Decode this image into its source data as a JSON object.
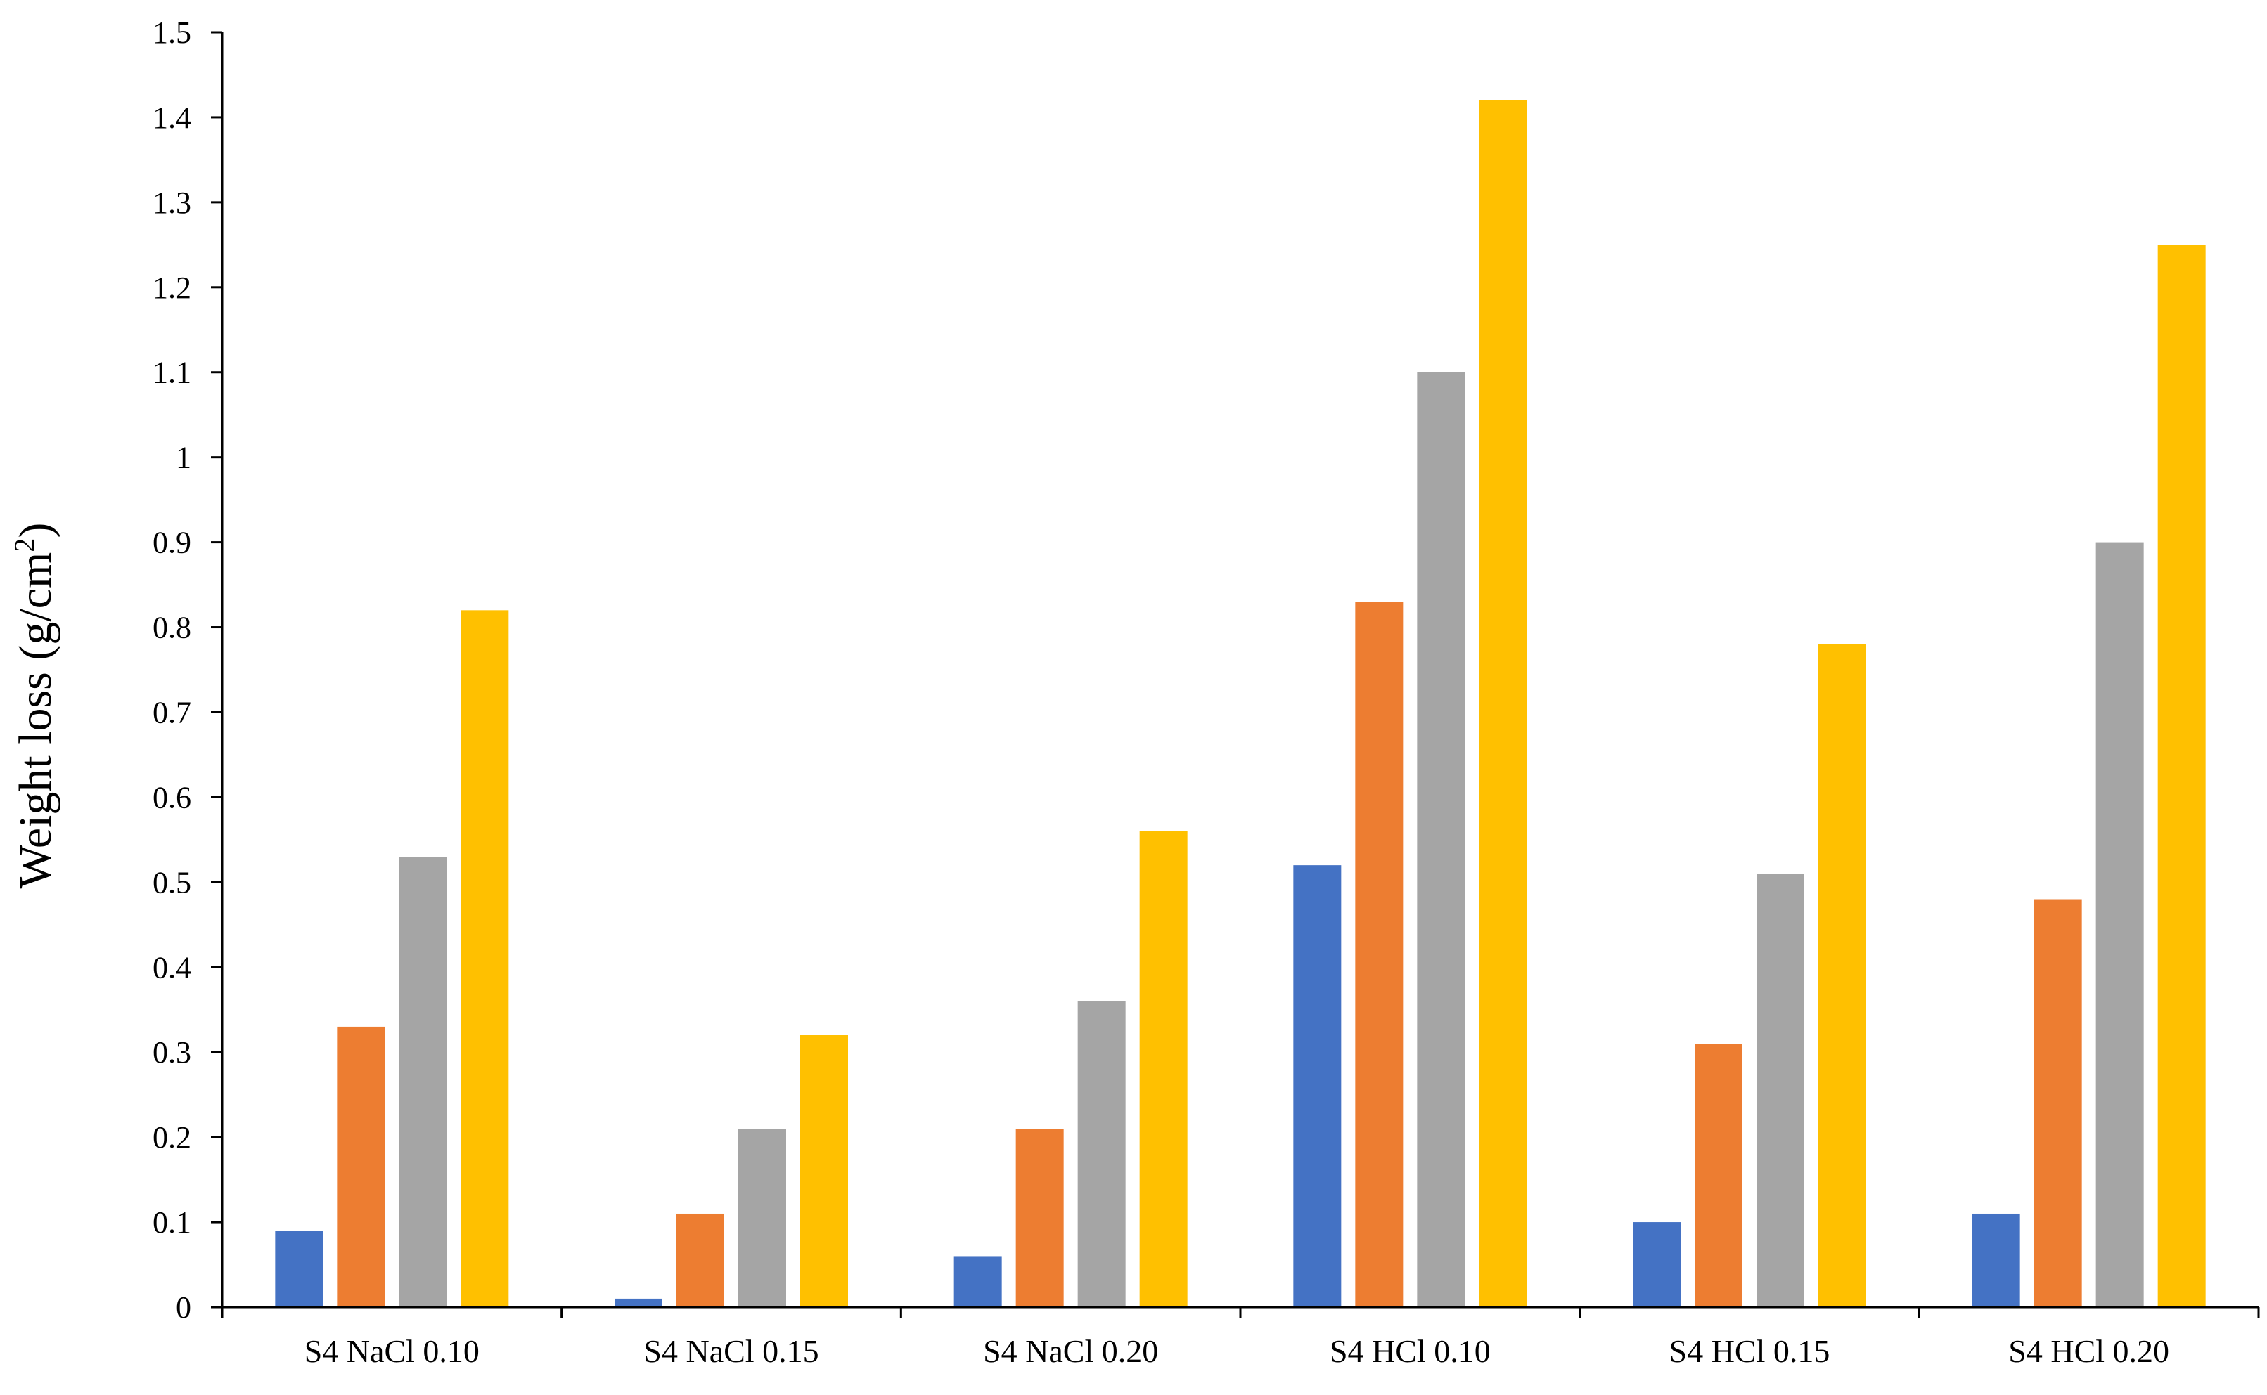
{
  "chart_data": {
    "type": "bar",
    "categories": [
      "S4 NaCl 0.10",
      "S4 NaCl 0.15",
      "S4 NaCl 0.20",
      "S4 HCl 0.10",
      "S4 HCl 0.15",
      "S4 HCl 0.20"
    ],
    "series": [
      {
        "color": "#4472C4",
        "values": [
          0.09,
          0.01,
          0.06,
          0.52,
          0.1,
          0.11
        ]
      },
      {
        "color": "#ED7D31",
        "values": [
          0.33,
          0.11,
          0.21,
          0.83,
          0.31,
          0.48
        ]
      },
      {
        "color": "#A5A5A5",
        "values": [
          0.53,
          0.21,
          0.36,
          1.1,
          0.51,
          0.9
        ]
      },
      {
        "color": "#FFC000",
        "values": [
          0.82,
          0.32,
          0.56,
          1.42,
          0.78,
          1.25
        ]
      }
    ],
    "title": "",
    "xlabel": "",
    "ylabel": "Weight loss (g/cm",
    "ylabel_sup": "2",
    "ylabel_end": ")",
    "ylim": [
      0,
      1.5
    ],
    "yticks": [
      0,
      0.1,
      0.2,
      0.3,
      0.4,
      0.5,
      0.6,
      0.7,
      0.8,
      0.9,
      1,
      1.1,
      1.2,
      1.3,
      1.4,
      1.5
    ],
    "ytick_labels": [
      "0",
      "0.1",
      "0.2",
      "0.3",
      "0.4",
      "0.5",
      "0.6",
      "0.7",
      "0.8",
      "0.9",
      "1",
      "1.1",
      "1.2",
      "1.3",
      "1.4",
      "1.5"
    ],
    "grid": false,
    "legend": "none"
  }
}
